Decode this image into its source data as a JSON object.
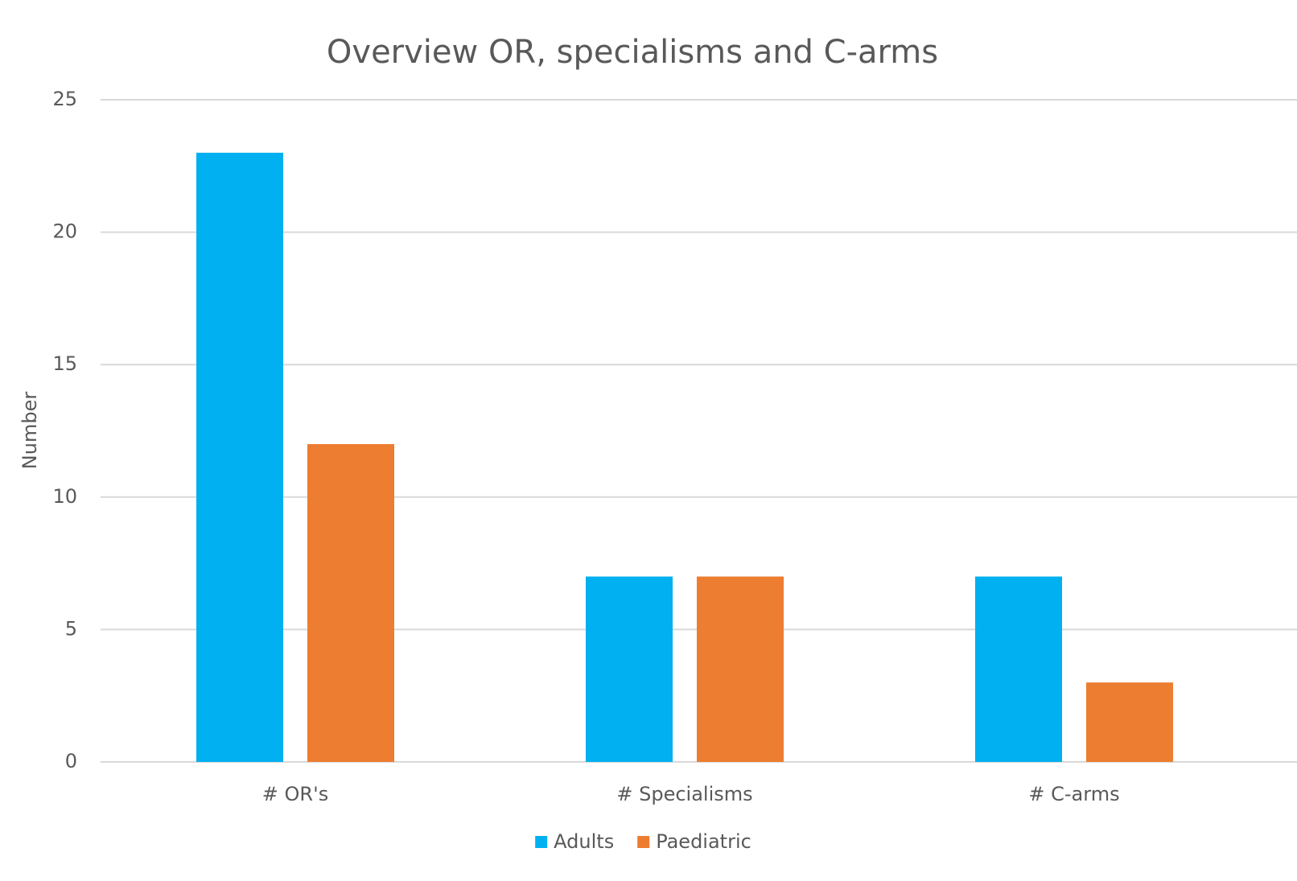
{
  "chart_data": {
    "type": "bar",
    "title": "Overview OR, specialisms and C-arms",
    "y_label": "Number",
    "categories": [
      "# OR's",
      "# Specialisms",
      "# C-arms"
    ],
    "series": [
      {
        "name": "Adults",
        "color": "#00b0f0",
        "values": [
          23,
          7,
          7
        ]
      },
      {
        "name": "Paediatric",
        "color": "#ed7d31",
        "values": [
          12,
          7,
          3
        ]
      }
    ],
    "ylim": [
      0,
      25
    ],
    "yticks": [
      0,
      5,
      10,
      15,
      20,
      25
    ],
    "grid": true,
    "legend": "bottom"
  }
}
